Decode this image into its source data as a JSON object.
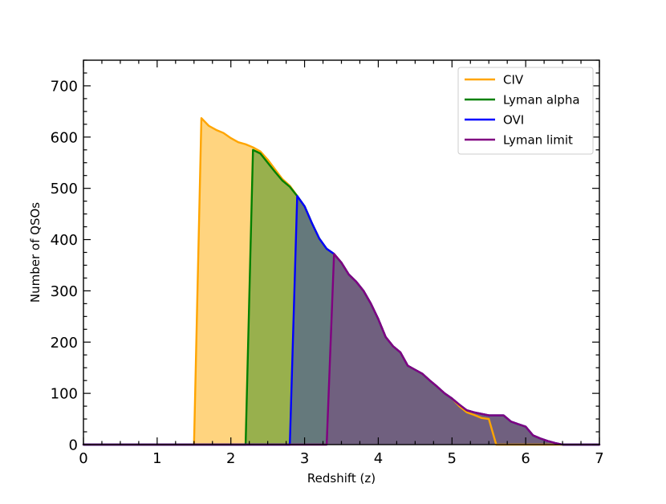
{
  "chart_data": {
    "type": "area",
    "title": "",
    "xlabel": "Redshift (z)",
    "ylabel": "Number of QSOs",
    "xlim": [
      0,
      7
    ],
    "ylim": [
      0,
      750
    ],
    "xticks": [
      0,
      1,
      2,
      3,
      4,
      5,
      6,
      7
    ],
    "yticks": [
      0,
      100,
      200,
      300,
      400,
      500,
      600,
      700
    ],
    "grid": false,
    "legend_position": "top-right",
    "series": [
      {
        "name": "CIV",
        "color": "#FFA500",
        "fill": "#FFD47F",
        "x": [
          0,
          1.5,
          1.6,
          1.7,
          1.8,
          1.9,
          2.0,
          2.1,
          2.2,
          2.3,
          2.4,
          2.5,
          2.6,
          2.7,
          2.8,
          2.9,
          3.0,
          3.1,
          3.2,
          3.3,
          3.4,
          3.5,
          3.6,
          3.7,
          3.8,
          3.9,
          4.0,
          4.1,
          4.2,
          4.3,
          4.4,
          4.5,
          4.6,
          4.7,
          4.8,
          4.9,
          5.0,
          5.1,
          5.2,
          5.3,
          5.4,
          5.5,
          5.6,
          7
        ],
        "y": [
          0,
          0,
          637,
          622,
          614,
          608,
          598,
          590,
          586,
          580,
          572,
          556,
          537,
          518,
          505,
          485,
          465,
          432,
          402,
          382,
          372,
          355,
          332,
          318,
          300,
          275,
          245,
          210,
          192,
          180,
          154,
          146,
          138,
          125,
          113,
          100,
          90,
          75,
          63,
          58,
          52,
          50,
          0,
          0
        ]
      },
      {
        "name": "Lyman alpha",
        "color": "#008000",
        "fill": "#98B04D",
        "x": [
          0,
          2.2,
          2.3,
          2.4,
          2.5,
          2.6,
          2.7,
          2.8,
          2.9,
          3.0,
          3.1,
          3.2,
          3.3,
          3.4,
          3.5,
          3.6,
          3.7,
          3.8,
          3.9,
          4.0,
          4.1,
          4.2,
          4.3,
          4.4,
          4.5,
          4.6,
          4.7,
          4.8,
          4.9,
          5.0,
          5.1,
          5.2,
          5.3,
          5.4,
          5.5,
          5.6,
          5.7,
          5.8,
          5.9,
          6.0,
          6.1,
          6.2,
          6.3,
          6.4,
          6.5,
          7
        ],
        "y": [
          0,
          0,
          575,
          568,
          550,
          532,
          515,
          503,
          485,
          465,
          432,
          402,
          382,
          372,
          355,
          332,
          318,
          300,
          275,
          245,
          210,
          192,
          180,
          154,
          146,
          138,
          125,
          113,
          100,
          90,
          78,
          67,
          63,
          60,
          57,
          57,
          57,
          45,
          40,
          35,
          18,
          12,
          7,
          3,
          0,
          0
        ]
      },
      {
        "name": "OVI",
        "color": "#0000FF",
        "fill": "#65797C",
        "x": [
          0,
          2.8,
          2.9,
          3.0,
          3.1,
          3.2,
          3.3,
          3.4,
          3.5,
          3.6,
          3.7,
          3.8,
          3.9,
          4.0,
          4.1,
          4.2,
          4.3,
          4.4,
          4.5,
          4.6,
          4.7,
          4.8,
          4.9,
          5.0,
          5.1,
          5.2,
          5.3,
          5.4,
          5.5,
          5.6,
          5.7,
          5.8,
          5.9,
          6.0,
          6.1,
          6.2,
          6.3,
          6.4,
          6.5,
          7
        ],
        "y": [
          0,
          0,
          485,
          465,
          432,
          402,
          382,
          372,
          355,
          332,
          318,
          300,
          275,
          245,
          210,
          192,
          180,
          154,
          146,
          138,
          125,
          113,
          100,
          90,
          78,
          67,
          63,
          60,
          57,
          57,
          57,
          45,
          40,
          35,
          18,
          12,
          7,
          3,
          0,
          0
        ]
      },
      {
        "name": "Lyman limit",
        "color": "#800080",
        "fill": "#70607F",
        "x": [
          0,
          3.3,
          3.4,
          3.5,
          3.6,
          3.7,
          3.8,
          3.9,
          4.0,
          4.1,
          4.2,
          4.3,
          4.4,
          4.5,
          4.6,
          4.7,
          4.8,
          4.9,
          5.0,
          5.1,
          5.2,
          5.3,
          5.4,
          5.5,
          5.6,
          5.7,
          5.8,
          5.9,
          6.0,
          6.1,
          6.2,
          6.3,
          6.4,
          6.5,
          7
        ],
        "y": [
          0,
          0,
          372,
          355,
          332,
          318,
          300,
          275,
          245,
          210,
          192,
          180,
          154,
          146,
          138,
          125,
          113,
          100,
          90,
          78,
          67,
          63,
          60,
          57,
          57,
          57,
          45,
          40,
          35,
          18,
          12,
          7,
          3,
          0,
          0
        ]
      }
    ]
  }
}
